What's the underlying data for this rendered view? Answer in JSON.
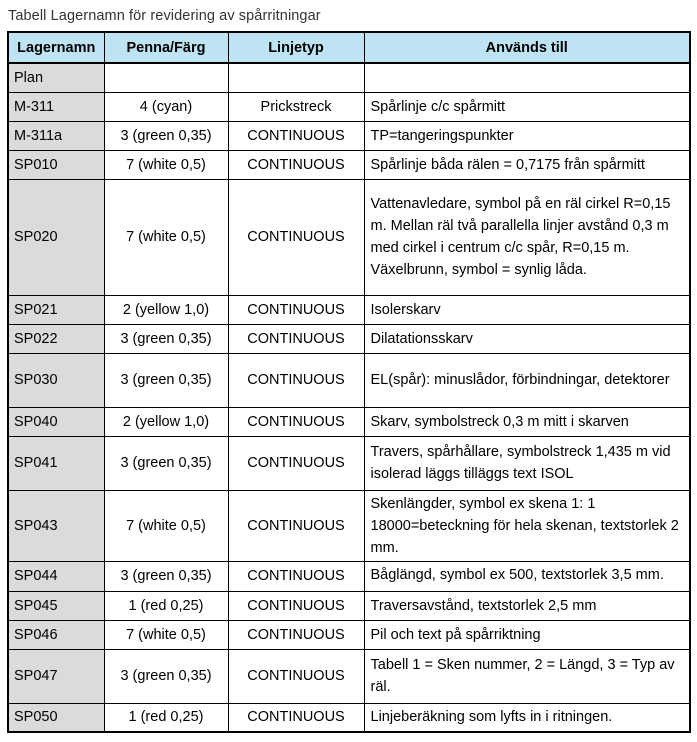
{
  "title": "Tabell Lagernamn för revidering av spårritningar",
  "colors": {
    "header_bg": "#bee3f2",
    "layer_column_bg": "#dbdbdb",
    "border": "#000000",
    "text": "#1a1a1a",
    "title_text": "#333333"
  },
  "table": {
    "columns": [
      "Lagernamn",
      "Penna/Färg",
      "Linjetyp",
      "Används till"
    ],
    "rows": [
      {
        "layer": "Plan",
        "pen": "",
        "linetype": "",
        "usage": ""
      },
      {
        "layer": "M-311",
        "pen": "4 (cyan)",
        "linetype": "Prickstreck",
        "usage": "Spårlinje c/c spårmitt"
      },
      {
        "layer": "M-311a",
        "pen": "3 (green 0,35)",
        "linetype": "CONTINUOUS",
        "usage": "TP=tangeringspunkter"
      },
      {
        "layer": "SP010",
        "pen": "7 (white 0,5)",
        "linetype": "CONTINUOUS",
        "usage": "Spårlinje båda rälen = 0,7175 från spårmitt"
      },
      {
        "layer": "SP020",
        "pen": "7 (white 0,5)",
        "linetype": "CONTINUOUS",
        "usage": "Vattenavledare, symbol på en räl cirkel R=0,15 m. Mellan räl två parallella linjer avstånd 0,3 m med cirkel i centrum c/c spår, R=0,15 m.  Växelbrunn, symbol = synlig låda."
      },
      {
        "layer": "SP021",
        "pen": "2 (yellow 1,0)",
        "linetype": "CONTINUOUS",
        "usage": "Isolerskarv"
      },
      {
        "layer": "SP022",
        "pen": "3 (green 0,35)",
        "linetype": "CONTINUOUS",
        "usage": "Dilatationsskarv"
      },
      {
        "layer": "SP030",
        "pen": "3 (green 0,35)",
        "linetype": "CONTINUOUS",
        "usage": "EL(spår): minuslådor, förbindningar, detektorer"
      },
      {
        "layer": "SP040",
        "pen": "2 (yellow 1,0)",
        "linetype": "CONTINUOUS",
        "usage": "Skarv, symbolstreck 0,3 m mitt i skarven"
      },
      {
        "layer": "SP041",
        "pen": "3 (green 0,35)",
        "linetype": "CONTINUOUS",
        "usage": "Travers, spårhållare, symbolstreck 1,435 m vid isolerad läggs tilläggs text ISOL"
      },
      {
        "layer": "SP043",
        "pen": "7 (white 0,5)",
        "linetype": "CONTINUOUS",
        "usage": "Skenlängder, symbol ex skena 1:  1 18000=beteckning för hela skenan, textstorlek 2 mm."
      },
      {
        "layer": "SP044",
        "pen": "3 (green 0,35)",
        "linetype": "CONTINUOUS",
        "usage": "Båglängd, symbol ex 500, textstorlek 3,5 mm."
      },
      {
        "layer": "SP045",
        "pen": "1 (red 0,25)",
        "linetype": "CONTINUOUS",
        "usage": "Traversavstånd, textstorlek 2,5 mm"
      },
      {
        "layer": "SP046",
        "pen": "7 (white 0,5)",
        "linetype": "CONTINUOUS",
        "usage": "Pil och text på spårriktning"
      },
      {
        "layer": "SP047",
        "pen": "3 (green 0,35)",
        "linetype": "CONTINUOUS",
        "usage": "Tabell 1 = Sken nummer, 2 = Längd, 3 = Typ av räl."
      },
      {
        "layer": "SP050",
        "pen": "1 (red 0,25)",
        "linetype": "CONTINUOUS",
        "usage": "Linjeberäkning som lyfts in i ritningen."
      }
    ]
  }
}
